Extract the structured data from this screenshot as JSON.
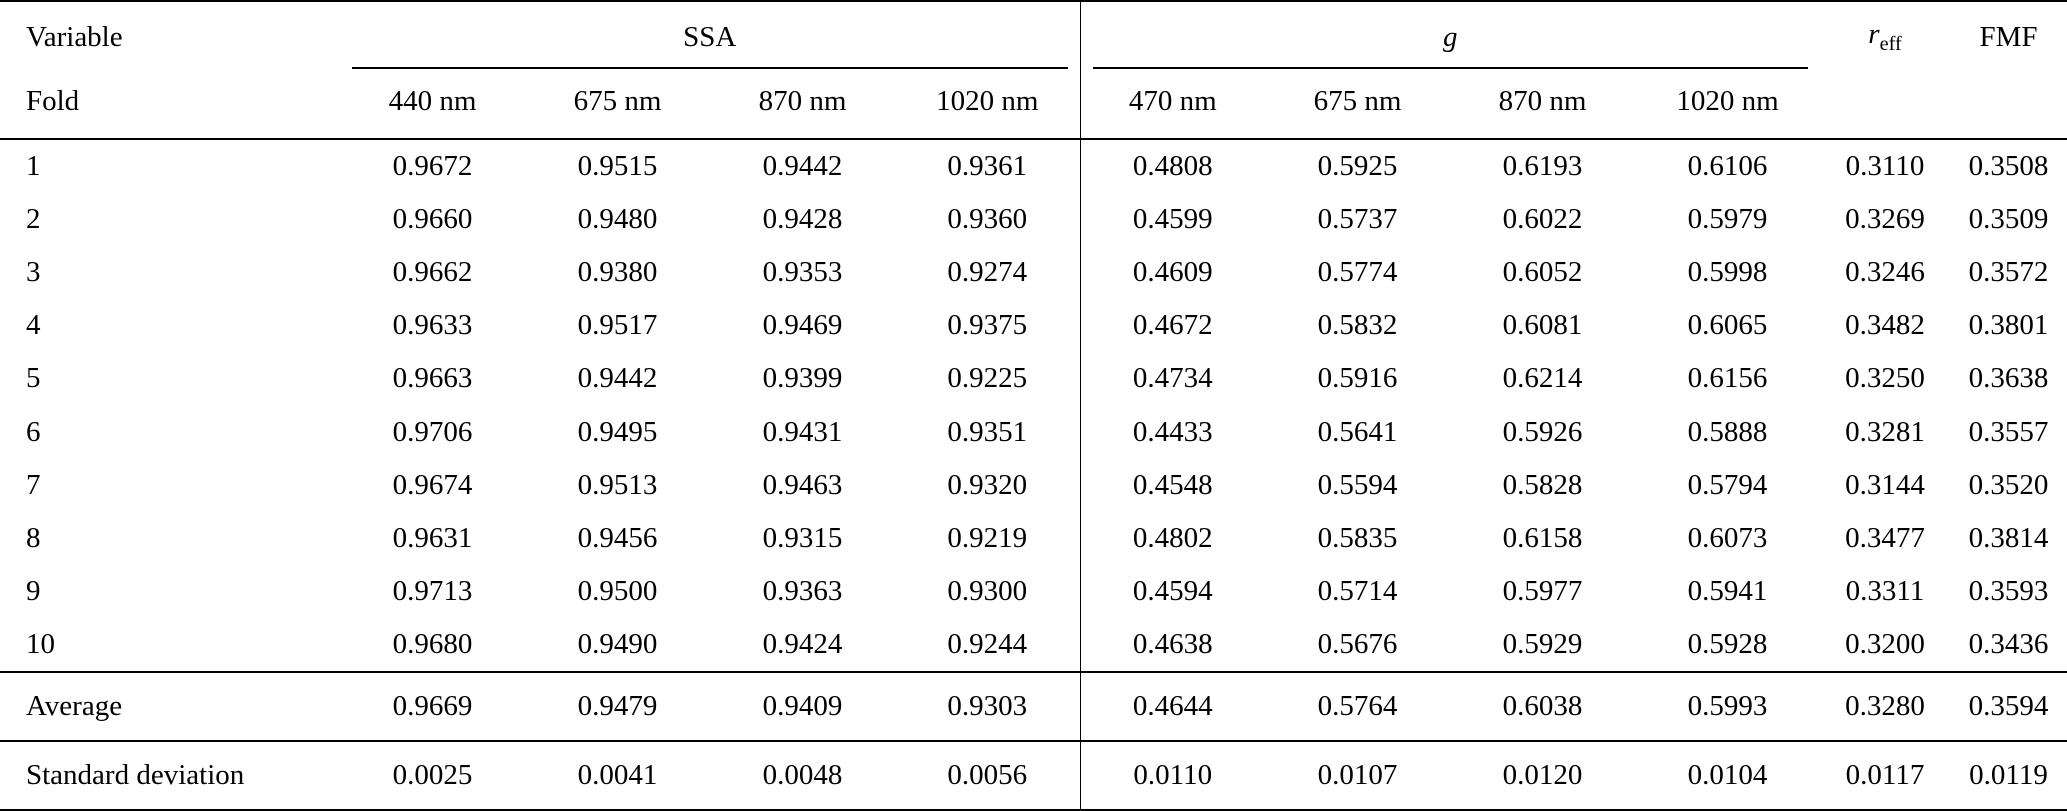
{
  "table": {
    "headers": {
      "variable": "Variable",
      "fold": "Fold",
      "ssa": "SSA",
      "g": "g",
      "reff_base": "r",
      "reff_sub": "eff",
      "fmf": "FMF"
    },
    "sub_headers": {
      "ssa_wavelengths": [
        "440 nm",
        "675 nm",
        "870 nm",
        "1020 nm"
      ],
      "g_wavelengths": [
        "470 nm",
        "675 nm",
        "870 nm",
        "1020 nm"
      ]
    },
    "rows": [
      {
        "label": "1",
        "values": [
          "0.9672",
          "0.9515",
          "0.9442",
          "0.9361",
          "0.4808",
          "0.5925",
          "0.6193",
          "0.6106",
          "0.3110",
          "0.3508"
        ]
      },
      {
        "label": "2",
        "values": [
          "0.9660",
          "0.9480",
          "0.9428",
          "0.9360",
          "0.4599",
          "0.5737",
          "0.6022",
          "0.5979",
          "0.3269",
          "0.3509"
        ]
      },
      {
        "label": "3",
        "values": [
          "0.9662",
          "0.9380",
          "0.9353",
          "0.9274",
          "0.4609",
          "0.5774",
          "0.6052",
          "0.5998",
          "0.3246",
          "0.3572"
        ]
      },
      {
        "label": "4",
        "values": [
          "0.9633",
          "0.9517",
          "0.9469",
          "0.9375",
          "0.4672",
          "0.5832",
          "0.6081",
          "0.6065",
          "0.3482",
          "0.3801"
        ]
      },
      {
        "label": "5",
        "values": [
          "0.9663",
          "0.9442",
          "0.9399",
          "0.9225",
          "0.4734",
          "0.5916",
          "0.6214",
          "0.6156",
          "0.3250",
          "0.3638"
        ]
      },
      {
        "label": "6",
        "values": [
          "0.9706",
          "0.9495",
          "0.9431",
          "0.9351",
          "0.4433",
          "0.5641",
          "0.5926",
          "0.5888",
          "0.3281",
          "0.3557"
        ]
      },
      {
        "label": "7",
        "values": [
          "0.9674",
          "0.9513",
          "0.9463",
          "0.9320",
          "0.4548",
          "0.5594",
          "0.5828",
          "0.5794",
          "0.3144",
          "0.3520"
        ]
      },
      {
        "label": "8",
        "values": [
          "0.9631",
          "0.9456",
          "0.9315",
          "0.9219",
          "0.4802",
          "0.5835",
          "0.6158",
          "0.6073",
          "0.3477",
          "0.3814"
        ]
      },
      {
        "label": "9",
        "values": [
          "0.9713",
          "0.9500",
          "0.9363",
          "0.9300",
          "0.4594",
          "0.5714",
          "0.5977",
          "0.5941",
          "0.3311",
          "0.3593"
        ]
      },
      {
        "label": "10",
        "values": [
          "0.9680",
          "0.9490",
          "0.9424",
          "0.9244",
          "0.4638",
          "0.5676",
          "0.5929",
          "0.5928",
          "0.3200",
          "0.3436"
        ]
      }
    ],
    "average": {
      "label": "Average",
      "values": [
        "0.9669",
        "0.9479",
        "0.9409",
        "0.9303",
        "0.4644",
        "0.5764",
        "0.6038",
        "0.5993",
        "0.3280",
        "0.3594"
      ]
    },
    "std_dev": {
      "label": "Standard deviation",
      "values": [
        "0.0025",
        "0.0041",
        "0.0048",
        "0.0056",
        "0.0110",
        "0.0107",
        "0.0120",
        "0.0104",
        "0.0117",
        "0.0119"
      ]
    }
  }
}
